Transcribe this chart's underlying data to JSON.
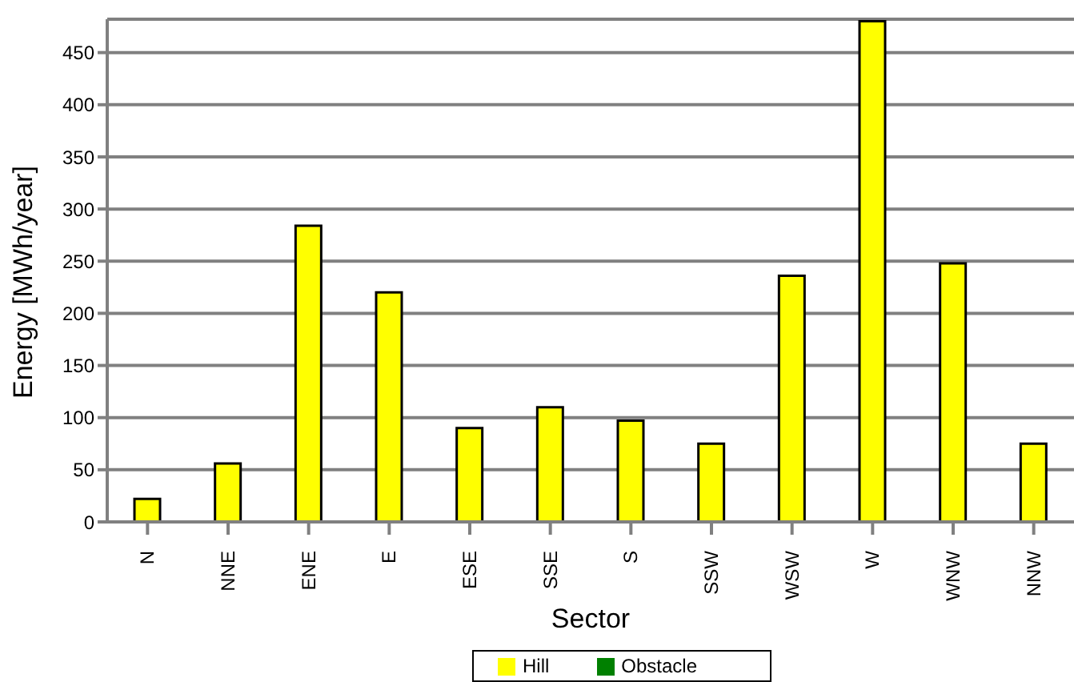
{
  "chart_data": {
    "type": "bar",
    "xlabel": "Sector",
    "ylabel": "Energy [MWh/year]",
    "categories": [
      "N",
      "NNE",
      "ENE",
      "E",
      "ESE",
      "SSE",
      "S",
      "SSW",
      "WSW",
      "W",
      "WNW",
      "NNW"
    ],
    "series": [
      {
        "name": "Hill",
        "color": "#ffff00",
        "values": [
          22,
          56,
          284,
          220,
          90,
          110,
          97,
          75,
          236,
          480,
          248,
          75
        ]
      },
      {
        "name": "Obstacle",
        "color": "#008000",
        "values": [
          0,
          0,
          0,
          0,
          0,
          0,
          0,
          0,
          0,
          0,
          0,
          0
        ]
      }
    ],
    "stacked": true,
    "ylim": [
      0,
      482
    ],
    "yticks": [
      0,
      50,
      100,
      150,
      200,
      250,
      300,
      350,
      400,
      450
    ],
    "grid": "y",
    "legend": "bottom"
  }
}
